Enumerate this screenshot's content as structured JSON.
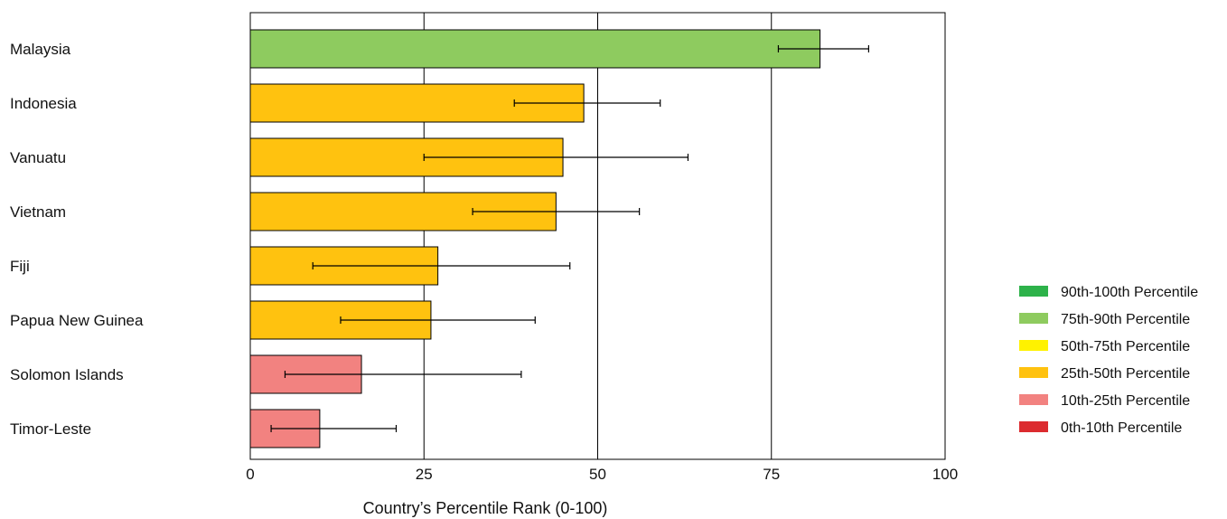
{
  "chart_data": {
    "type": "bar",
    "orientation": "horizontal",
    "categories": [
      "Malaysia",
      "Indonesia",
      "Vanuatu",
      "Vietnam",
      "Fiji",
      "Papua New Guinea",
      "Solomon Islands",
      "Timor-Leste"
    ],
    "values": [
      82,
      48,
      45,
      44,
      27,
      26,
      16,
      10
    ],
    "error_low": [
      76,
      38,
      25,
      32,
      9,
      13,
      5,
      3
    ],
    "error_high": [
      89,
      59,
      63,
      56,
      46,
      41,
      39,
      21
    ],
    "bar_colors": [
      "#8ecb5f",
      "#ffc20f",
      "#ffc20f",
      "#ffc20f",
      "#ffc20f",
      "#ffc20f",
      "#f28280",
      "#f28280"
    ],
    "xlabel": "Country’s Percentile Rank (0-100)",
    "xlim": [
      0,
      100
    ],
    "xticks": [
      0,
      25,
      50,
      75,
      100
    ],
    "grid": "vertical lines at 25, 50, 75",
    "legend_position": "right",
    "legend": [
      {
        "label": "90th-100th Percentile",
        "color": "#2db24a"
      },
      {
        "label": "75th-90th Percentile",
        "color": "#8ecb5f"
      },
      {
        "label": "50th-75th Percentile",
        "color": "#fff200"
      },
      {
        "label": "25th-50th Percentile",
        "color": "#ffc20f"
      },
      {
        "label": "10th-25th Percentile",
        "color": "#f28280"
      },
      {
        "label": "0th-10th Percentile",
        "color": "#dc2b2f"
      }
    ]
  }
}
